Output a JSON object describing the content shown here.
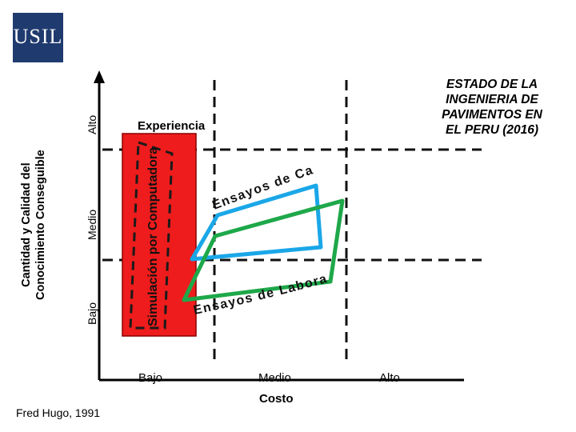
{
  "logo": {
    "text": "USIL"
  },
  "title": [
    "ESTADO DE LA",
    "INGENIERIA DE",
    "PAVIMENTOS EN",
    "EL PERU (2016)"
  ],
  "y_axis": {
    "title_line1": "Cantidad y Calidad del",
    "title_line2": "Conocimiento Conseguible",
    "levels": [
      "Bajo",
      "Medio",
      "Alto"
    ]
  },
  "x_axis": {
    "title": "Costo",
    "levels": [
      "Bajo",
      "Medio",
      "Alto"
    ]
  },
  "regions": {
    "experiencia": "Experiencia",
    "simulacion": "Simulación por Computadora",
    "campo": "Ensayos de Campo",
    "laboratorio": "Ensayos de Laboratorio"
  },
  "colors": {
    "logo_bg": "#1f3a6e",
    "simulacion_fill": "#ee1c1c",
    "campo_stroke": "#1aa7e8",
    "laboratorio_stroke": "#1ea84a",
    "grid": "#111111"
  },
  "credit": "Fred Hugo, 1991"
}
